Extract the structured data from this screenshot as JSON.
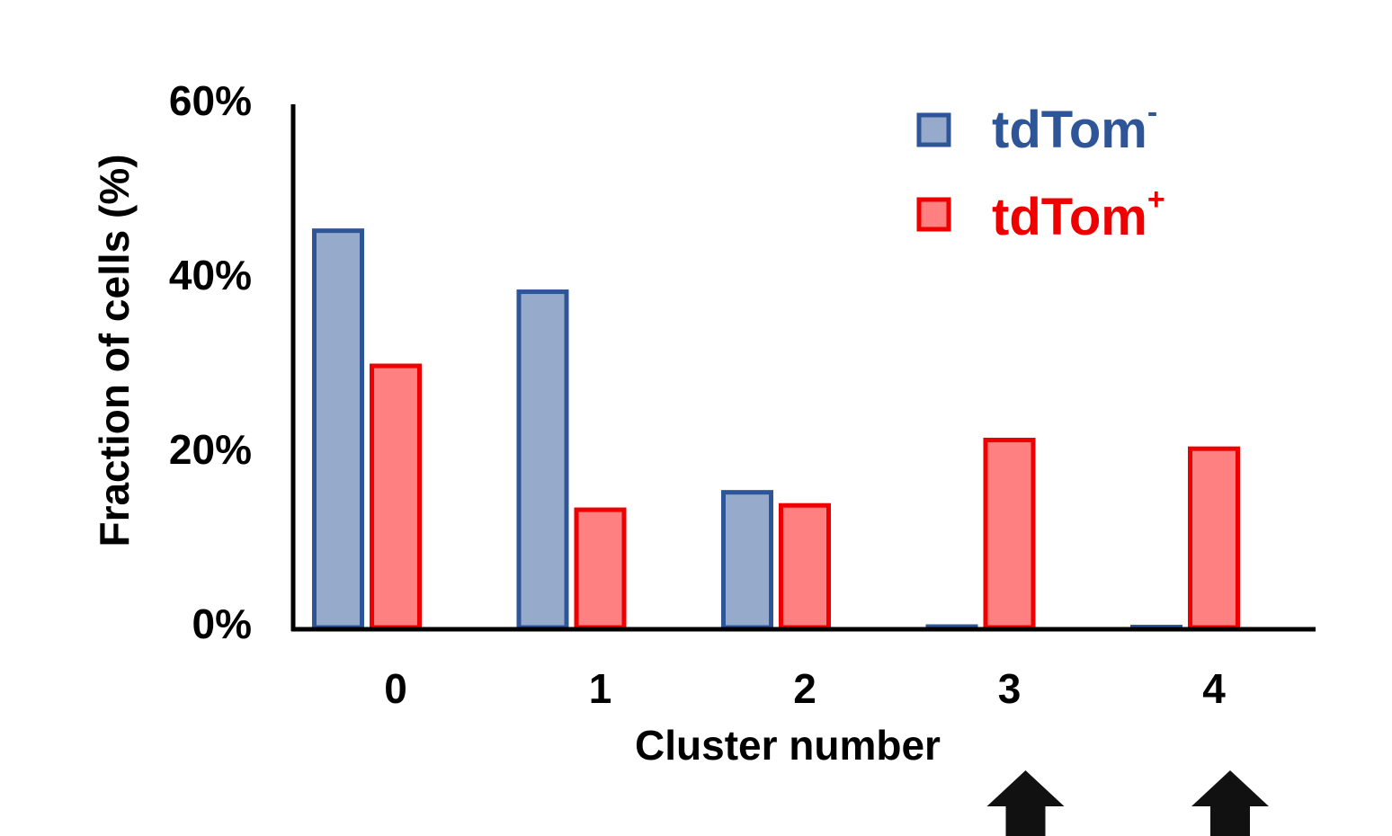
{
  "chart_data": {
    "type": "bar",
    "categories": [
      "0",
      "1",
      "2",
      "3",
      "4"
    ],
    "series": [
      {
        "name": "tdTom",
        "name_superscript": "-",
        "values": [
          45.5,
          38.5,
          15.5,
          0.1,
          0.05
        ],
        "fill": "#96aacc",
        "stroke": "#2e5597"
      },
      {
        "name": "tdTom",
        "name_superscript": "+",
        "values": [
          30,
          13.5,
          14,
          21.5,
          20.5
        ],
        "fill": "#ff8080",
        "stroke": "#ee0000"
      }
    ],
    "title": "",
    "xlabel": "Cluster number",
    "ylabel": "Fraction of cells (%)",
    "ylim": [
      0,
      60
    ],
    "yticks": [
      {
        "value": 0,
        "label": "0%"
      },
      {
        "value": 20,
        "label": "20%"
      },
      {
        "value": 40,
        "label": "40%"
      },
      {
        "value": 60,
        "label": "60%"
      }
    ],
    "grid": false,
    "legend_position": "top-right",
    "annotations": [
      {
        "type": "arrow-up",
        "category": "3",
        "color": "#111111"
      },
      {
        "type": "arrow-up",
        "category": "4",
        "color": "#111111"
      }
    ]
  }
}
